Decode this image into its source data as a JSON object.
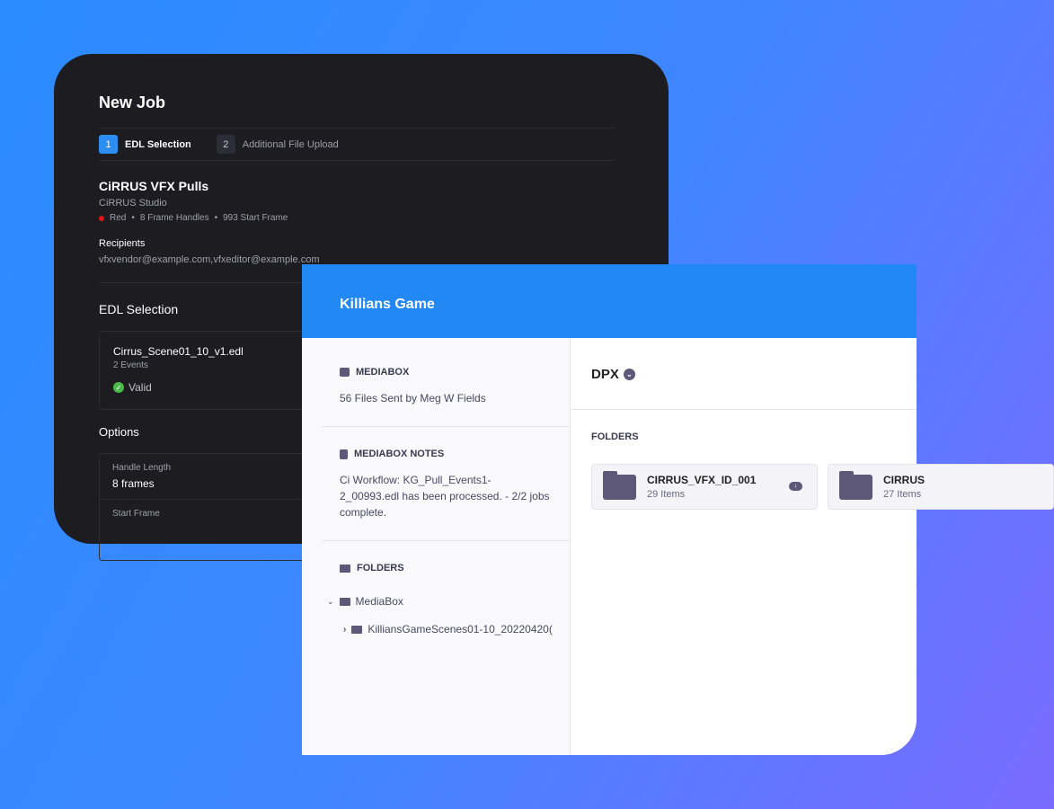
{
  "new_job": {
    "title": "New Job",
    "steps": [
      {
        "num": "1",
        "label": "EDL Selection"
      },
      {
        "num": "2",
        "label": "Additional File Upload"
      }
    ],
    "job_name": "CiRRUS VFX Pulls",
    "studio": "CiRRUS Studio",
    "meta": [
      "Red",
      "8 Frame Handles",
      "993 Start Frame"
    ],
    "meta_sep": "•",
    "recipients_label": "Recipients",
    "recipients": "vfxvendor@example.com,vfxeditor@example.com",
    "edl_heading": "EDL Selection",
    "edl_file": "Cirrus_Scene01_10_v1.edl",
    "edl_events": "2 Events",
    "edl_status": "Valid",
    "options_heading": "Options",
    "handle_length_label": "Handle Length",
    "handle_length_value": "8 frames",
    "start_frame_label": "Start Frame",
    "camera_color": "#e01515"
  },
  "mediabox": {
    "title": "Killians Game",
    "header_color": "#2188f4",
    "sidebar": {
      "mediabox_label": "MEDIABOX",
      "mediabox_text": "56 Files Sent by Meg W Fields",
      "notes_label": "MEDIABOX NOTES",
      "notes_text": "Ci Workflow: KG_Pull_Events1-2_00993.edl has been processed. - 2/2 jobs complete.",
      "folders_label": "FOLDERS",
      "tree": [
        {
          "label": "MediaBox",
          "expanded": true
        },
        {
          "label": "KilliansGameScenes01-10_20220420(",
          "expanded": false
        }
      ]
    },
    "main": {
      "folder_title": "DPX",
      "folders_label": "FOLDERS",
      "folders": [
        {
          "name": "CIRRUS_VFX_ID_001",
          "count": "29 Items"
        },
        {
          "name": "CIRRUS",
          "count": "27 Items"
        }
      ]
    }
  }
}
